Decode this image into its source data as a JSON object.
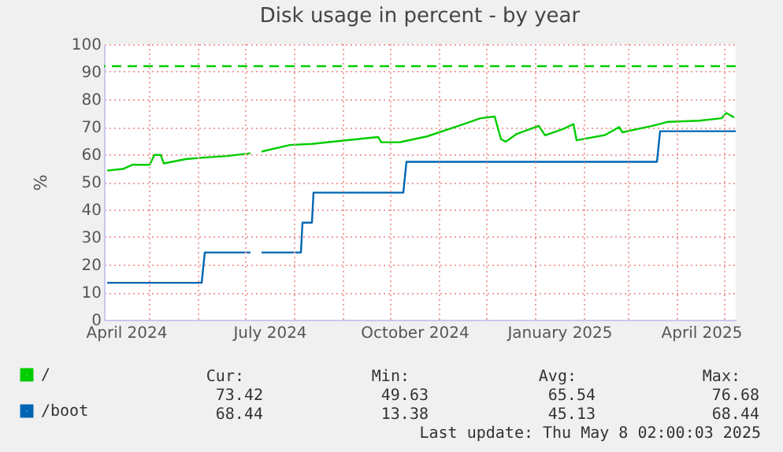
{
  "chart_data": {
    "type": "line",
    "title": "Disk usage in percent - by year",
    "ylabel": "%",
    "xlim": [
      "2024-04-02",
      "2025-05-08"
    ],
    "ylim": [
      0,
      100
    ],
    "yticks": [
      0,
      10,
      20,
      30,
      40,
      50,
      60,
      70,
      80,
      90,
      100
    ],
    "xticks": [
      {
        "value": "2024-04-16",
        "label": "April 2024"
      },
      {
        "value": "2024-05-01",
        "label": null
      },
      {
        "value": "2024-06-01",
        "label": null
      },
      {
        "value": "2024-07-01",
        "label": null
      },
      {
        "value": "2024-07-16",
        "label": "July 2024"
      },
      {
        "value": "2024-08-01",
        "label": null
      },
      {
        "value": "2024-09-01",
        "label": null
      },
      {
        "value": "2024-10-01",
        "label": null
      },
      {
        "value": "2024-10-16",
        "label": "October 2024"
      },
      {
        "value": "2024-11-01",
        "label": null
      },
      {
        "value": "2024-12-01",
        "label": null
      },
      {
        "value": "2025-01-01",
        "label": null
      },
      {
        "value": "2025-01-16",
        "label": "January 2025"
      },
      {
        "value": "2025-02-01",
        "label": null
      },
      {
        "value": "2025-03-01",
        "label": null
      },
      {
        "value": "2025-04-01",
        "label": null
      },
      {
        "value": "2025-04-16",
        "label": "April 2025"
      },
      {
        "value": "2025-05-01",
        "label": null
      }
    ],
    "grid": true,
    "legend": "bottom left",
    "marker": "none",
    "line_style": "solid",
    "series": [
      {
        "name": "/",
        "color": "#00cc00",
        "x": [
          "2024-04-04",
          "2024-04-14",
          "2024-04-20",
          "2024-05-01",
          "2024-05-04",
          "2024-05-08",
          "2024-05-10",
          "2024-05-24",
          "2024-06-06",
          "2024-06-19",
          "2024-07-04",
          "2024-07-07",
          "2024-07-11",
          "2024-07-29",
          "2024-08-12",
          "2024-09-01",
          "2024-09-23",
          "2024-09-25",
          "2024-10-07",
          "2024-10-24",
          "2024-11-13",
          "2024-11-27",
          "2024-12-06",
          "2024-12-10",
          "2024-12-13",
          "2024-12-20",
          "2025-01-03",
          "2025-01-07",
          "2025-01-19",
          "2025-01-25",
          "2025-01-27",
          "2025-02-14",
          "2025-02-23",
          "2025-02-25",
          "2025-03-16",
          "2025-03-26",
          "2025-04-15",
          "2025-04-29",
          "2025-05-02",
          "2025-05-07"
        ],
        "values": [
          54.1,
          54.7,
          56.2,
          56.2,
          59.8,
          59.8,
          56.7,
          58.3,
          58.9,
          59.4,
          60.4,
          null,
          61.0,
          63.4,
          63.8,
          65.0,
          66.3,
          64.4,
          64.4,
          66.5,
          70.3,
          73.1,
          73.7,
          65.5,
          64.6,
          67.4,
          70.3,
          66.9,
          69.3,
          71.0,
          65.1,
          67.0,
          69.9,
          68.0,
          70.3,
          71.8,
          72.2,
          73.1,
          75.0,
          73.4
        ]
      },
      {
        "name": "/boot",
        "color": "#0066b3",
        "x": [
          "2024-04-04",
          "2024-06-03",
          "2024-06-05",
          "2024-07-04",
          "2024-07-07",
          "2024-07-11",
          "2024-08-05",
          "2024-08-06",
          "2024-08-12",
          "2024-08-13",
          "2024-10-09",
          "2024-10-11",
          "2025-03-19",
          "2025-03-21",
          "2025-05-08"
        ],
        "values": [
          13.4,
          13.4,
          24.4,
          24.4,
          null,
          24.4,
          24.4,
          35.2,
          35.2,
          46.1,
          46.1,
          57.3,
          57.3,
          68.4,
          68.4
        ]
      }
    ],
    "ref_lines": [
      {
        "axis": "y",
        "value": 92,
        "color": "#00cc00",
        "line_style": "dashed"
      }
    ],
    "annotations": [
      "Cur:",
      "Min:",
      "Avg:",
      "Max:",
      "73.42",
      "49.63",
      "65.54",
      "76.68",
      "68.44",
      "13.38",
      "45.13",
      "68.44",
      "Last update: Thu May  8 02:00:03 2025"
    ]
  }
}
